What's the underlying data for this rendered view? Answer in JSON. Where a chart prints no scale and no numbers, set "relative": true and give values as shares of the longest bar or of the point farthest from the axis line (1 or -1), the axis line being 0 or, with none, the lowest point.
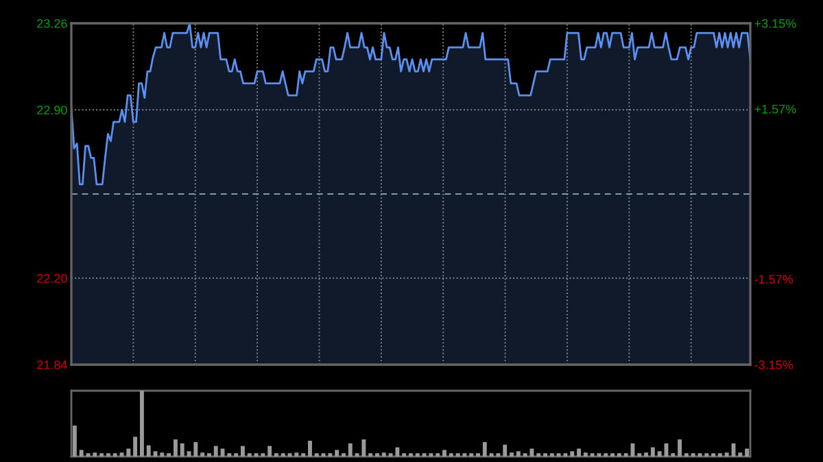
{
  "chart_data": [
    {
      "type": "area",
      "categories": [
        null,
        null,
        null,
        null,
        null,
        null,
        null,
        null,
        null,
        null,
        null,
        null,
        null,
        null,
        null,
        null,
        null,
        null,
        null,
        null,
        null,
        null,
        null,
        null,
        null,
        null,
        null,
        null,
        null,
        null,
        null,
        null,
        null,
        null,
        null,
        null,
        null,
        null,
        null,
        null,
        null,
        null,
        null,
        null,
        null,
        null,
        null,
        null,
        null,
        null,
        null,
        null,
        null,
        null,
        null,
        null,
        null,
        null,
        null,
        null,
        null,
        null,
        null,
        null,
        null,
        null,
        null,
        null,
        null,
        null,
        null,
        null,
        null,
        null,
        null,
        null,
        null,
        null,
        null,
        null,
        null,
        null,
        null,
        null,
        null,
        null,
        null,
        null,
        null,
        null,
        null,
        null,
        null,
        null,
        null,
        null,
        null,
        null,
        null,
        null,
        null,
        null,
        null,
        null,
        null,
        null,
        null,
        null,
        null,
        null,
        null,
        null,
        null,
        null,
        null,
        null,
        null,
        null,
        null,
        null,
        null,
        null,
        null,
        null,
        null,
        null,
        null,
        null,
        null,
        null,
        null,
        null,
        null,
        null,
        null,
        null,
        null,
        null,
        null,
        null,
        null,
        null,
        null,
        null,
        null,
        null,
        null,
        null,
        null,
        null,
        null,
        null,
        null,
        null,
        null,
        null,
        null,
        null,
        null,
        null,
        null,
        null,
        null,
        null,
        null,
        null,
        null,
        null,
        null,
        null,
        null,
        null,
        null,
        null,
        null,
        null,
        null,
        null,
        null,
        null,
        null,
        null,
        null,
        null,
        null,
        null,
        null,
        null,
        null,
        null,
        null,
        null,
        null,
        null,
        null,
        null,
        null,
        null,
        null,
        null,
        null,
        null,
        null,
        null,
        null,
        null,
        null,
        null,
        null,
        null,
        null,
        null,
        null,
        null,
        null,
        null,
        null,
        null,
        null,
        null,
        null,
        null,
        null,
        null,
        null,
        null,
        null,
        null,
        null,
        null,
        null,
        null,
        null,
        null,
        null,
        null,
        null,
        null,
        null,
        null,
        null,
        null
      ],
      "series": [
        {
          "color": "#5b8ff0",
          "values": [
            22.91,
            22.74,
            22.76,
            22.59,
            22.59,
            22.75,
            22.75,
            22.7,
            22.7,
            22.59,
            22.59,
            22.59,
            22.7,
            22.8,
            22.77,
            22.85,
            22.85,
            22.85,
            22.9,
            22.85,
            22.96,
            22.96,
            22.85,
            22.85,
            23.01,
            23.01,
            22.95,
            23.06,
            23.06,
            23.12,
            23.16,
            23.16,
            23.16,
            23.22,
            23.16,
            23.16,
            23.22,
            23.22,
            23.22,
            23.22,
            23.22,
            23.22,
            23.26,
            23.16,
            23.16,
            23.22,
            23.16,
            23.22,
            23.16,
            23.22,
            23.22,
            23.22,
            23.22,
            23.11,
            23.11,
            23.11,
            23.06,
            23.06,
            23.11,
            23.06,
            23.06,
            23.01,
            23.01,
            23.01,
            23.01,
            23.01,
            23.06,
            23.06,
            23.06,
            23.01,
            23.01,
            23.01,
            23.01,
            23.01,
            23.01,
            23.06,
            23.01,
            22.96,
            22.96,
            22.96,
            22.96,
            23.06,
            23.01,
            23.06,
            23.06,
            23.06,
            23.06,
            23.11,
            23.11,
            23.11,
            23.06,
            23.06,
            23.16,
            23.16,
            23.11,
            23.11,
            23.11,
            23.16,
            23.22,
            23.16,
            23.16,
            23.16,
            23.16,
            23.22,
            23.16,
            23.16,
            23.11,
            23.16,
            23.11,
            23.11,
            23.11,
            23.22,
            23.16,
            23.16,
            23.11,
            23.11,
            23.16,
            23.06,
            23.11,
            23.11,
            23.06,
            23.11,
            23.06,
            23.06,
            23.11,
            23.06,
            23.11,
            23.06,
            23.11,
            23.11,
            23.11,
            23.11,
            23.11,
            23.11,
            23.16,
            23.16,
            23.16,
            23.16,
            23.16,
            23.16,
            23.22,
            23.16,
            23.16,
            23.16,
            23.16,
            23.16,
            23.22,
            23.11,
            23.11,
            23.11,
            23.11,
            23.11,
            23.11,
            23.11,
            23.11,
            23.11,
            23.01,
            23.01,
            23.01,
            22.96,
            22.96,
            22.96,
            22.96,
            22.96,
            23.01,
            23.06,
            23.06,
            23.06,
            23.06,
            23.06,
            23.11,
            23.11,
            23.11,
            23.11,
            23.11,
            23.11,
            23.22,
            23.22,
            23.22,
            23.22,
            23.22,
            23.11,
            23.11,
            23.16,
            23.16,
            23.16,
            23.16,
            23.22,
            23.16,
            23.22,
            23.22,
            23.16,
            23.22,
            23.22,
            23.22,
            23.22,
            23.16,
            23.16,
            23.16,
            23.22,
            23.11,
            23.16,
            23.16,
            23.16,
            23.16,
            23.16,
            23.22,
            23.16,
            23.16,
            23.16,
            23.16,
            23.22,
            23.16,
            23.11,
            23.11,
            23.11,
            23.16,
            23.16,
            23.16,
            23.11,
            23.16,
            23.16,
            23.22,
            23.22,
            23.22,
            23.22,
            23.22,
            23.22,
            23.22,
            23.16,
            23.22,
            23.16,
            23.22,
            23.16,
            23.22,
            23.16,
            23.22,
            23.16,
            23.22,
            23.22,
            23.22,
            23.11
          ]
        }
      ],
      "ylim": [
        21.84,
        23.26
      ],
      "yticks": [
        {
          "value": 21.84,
          "label": "21.84"
        },
        {
          "value": 22.2,
          "label": "22.20"
        },
        {
          "value": 22.9,
          "label": "22.90"
        },
        {
          "value": 23.26,
          "label": "23.26"
        }
      ],
      "y2lim": [
        -3.15,
        3.15
      ],
      "y2ticks": [
        {
          "value": -3.15,
          "label": "-3.15%"
        },
        {
          "value": -1.57,
          "label": "-1.57%"
        },
        {
          "value": 1.57,
          "label": "+1.57%"
        },
        {
          "value": 3.15,
          "label": "+3.15%"
        }
      ],
      "ref_lines": [
        {
          "axis": "y",
          "value": 22.55,
          "line_style": "dashed"
        }
      ],
      "grid": true
    },
    {
      "type": "bar",
      "relative": true,
      "categories": [
        null,
        null,
        null,
        null,
        null,
        null,
        null,
        null,
        null,
        null,
        null,
        null,
        null,
        null,
        null,
        null,
        null,
        null,
        null,
        null,
        null,
        null,
        null,
        null,
        null,
        null,
        null,
        null,
        null,
        null,
        null,
        null,
        null,
        null,
        null,
        null,
        null,
        null,
        null,
        null,
        null,
        null,
        null,
        null,
        null,
        null,
        null,
        null,
        null,
        null,
        null,
        null,
        null,
        null,
        null,
        null,
        null,
        null,
        null,
        null,
        null,
        null,
        null,
        null,
        null,
        null,
        null,
        null,
        null,
        null,
        null,
        null,
        null,
        null,
        null,
        null,
        null,
        null,
        null,
        null,
        null,
        null,
        null,
        null,
        null,
        null,
        null,
        null,
        null,
        null,
        null,
        null,
        null,
        null,
        null,
        null,
        null,
        null,
        null,
        null,
        null
      ],
      "values": [
        0.47,
        0.1,
        0.05,
        0.06,
        0.05,
        0.05,
        0.05,
        0.06,
        0.12,
        0.3,
        1.0,
        0.17,
        0.08,
        0.06,
        0.05,
        0.26,
        0.2,
        0.08,
        0.22,
        0.06,
        0.05,
        0.16,
        0.12,
        0.05,
        0.05,
        0.16,
        0.05,
        0.05,
        0.05,
        0.16,
        0.05,
        0.05,
        0.05,
        0.06,
        0.05,
        0.24,
        0.05,
        0.05,
        0.05,
        0.1,
        0.05,
        0.2,
        0.05,
        0.26,
        0.05,
        0.05,
        0.06,
        0.05,
        0.14,
        0.05,
        0.05,
        0.05,
        0.05,
        0.05,
        0.05,
        0.1,
        0.05,
        0.05,
        0.05,
        0.05,
        0.05,
        0.22,
        0.05,
        0.05,
        0.18,
        0.06,
        0.08,
        0.05,
        0.12,
        0.05,
        0.05,
        0.05,
        0.05,
        0.05,
        0.08,
        0.12,
        0.06,
        0.05,
        0.05,
        0.05,
        0.05,
        0.05,
        0.05,
        0.2,
        0.05,
        0.06,
        0.14,
        0.08,
        0.2,
        0.05,
        0.26,
        0.05,
        0.05,
        0.05,
        0.05,
        0.05,
        0.05,
        0.06,
        0.2,
        0.06,
        0.12
      ],
      "color": "#9a9a9a"
    }
  ]
}
